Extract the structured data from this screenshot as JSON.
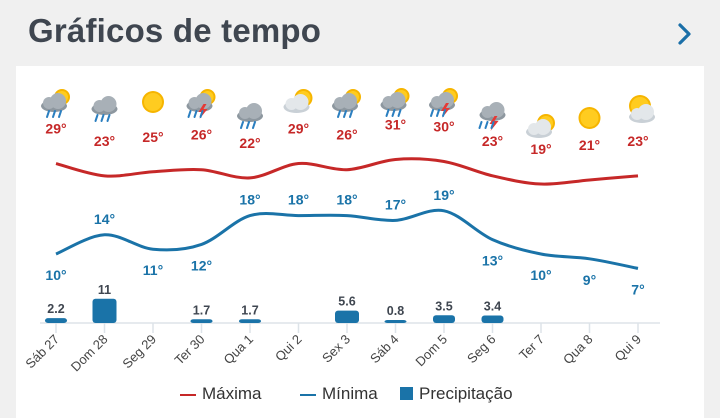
{
  "header": {
    "title": "Gráficos de tempo",
    "next_icon": "chevron-right-icon"
  },
  "colors": {
    "max": "#c62828",
    "min": "#1a73a8",
    "precip": "#1a73a8",
    "grid": "#dde3e8"
  },
  "chart_data": {
    "type": "line",
    "categories": [
      "Sáb 27",
      "Dom 28",
      "Seg 29",
      "Ter 30",
      "Qua 1",
      "Qui 2",
      "Sex 3",
      "Sáb 4",
      "Dom 5",
      "Seg 6",
      "Ter 7",
      "Qua 8",
      "Qui 9"
    ],
    "series": [
      {
        "name": "Máxima",
        "unit": "°",
        "values": [
          29,
          23,
          25,
          26,
          22,
          29,
          26,
          31,
          30,
          23,
          19,
          21,
          23
        ],
        "labels": [
          "29°",
          "23°",
          "25°",
          "26°",
          "22°",
          "29°",
          "26°",
          "31°",
          "30°",
          "23°",
          "19°",
          "21°",
          "23°"
        ]
      },
      {
        "name": "Mínima",
        "unit": "°",
        "values": [
          10,
          14,
          11,
          12,
          18,
          18,
          18,
          17,
          19,
          13,
          10,
          9,
          7
        ],
        "labels": [
          "10°",
          "14°",
          "11°",
          "12°",
          "18°",
          "18°",
          "18°",
          "17°",
          "19°",
          "13°",
          "10°",
          "9°",
          "7°"
        ]
      },
      {
        "name": "Precipitação",
        "type": "bar",
        "values": [
          2.2,
          11,
          0,
          1.7,
          1.7,
          0,
          5.6,
          0.8,
          3.5,
          3.4,
          0,
          0,
          0
        ],
        "labels": [
          "2.2",
          "11",
          "",
          "1.7",
          "1.7",
          "",
          "5.6",
          "0.8",
          "3.5",
          "3.4",
          "",
          "",
          ""
        ]
      }
    ],
    "icons": [
      "cloud-sun-rain-icon",
      "cloud-rain-icon",
      "sun-icon",
      "sun-storm-icon",
      "cloud-rain-icon",
      "cloud-sun-icon",
      "cloud-sun-rain-icon",
      "cloud-sun-rain-icon",
      "sun-storm-icon",
      "cloud-storm-icon",
      "cloud-sun-icon",
      "sun-icon",
      "sun-cloud-icon"
    ],
    "legend_position": "bottom"
  },
  "legend": [
    {
      "label": "Máxima",
      "kind": "line"
    },
    {
      "label": "Mínima",
      "kind": "line"
    },
    {
      "label": "Precipitação",
      "kind": "square"
    }
  ]
}
